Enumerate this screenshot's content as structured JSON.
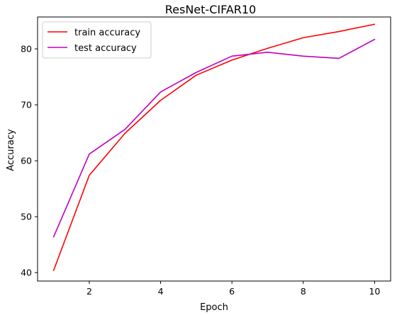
{
  "chart_data": {
    "type": "line",
    "title": "ResNet-CIFAR10",
    "xlabel": "Epoch",
    "ylabel": "Accuracy",
    "xlim": [
      0.55,
      10.45
    ],
    "ylim": [
      38.5,
      85.7
    ],
    "xticks": [
      2,
      4,
      6,
      8,
      10
    ],
    "yticks": [
      40,
      50,
      60,
      70,
      80
    ],
    "x": [
      1,
      2,
      3,
      4,
      5,
      6,
      7,
      8,
      9,
      10
    ],
    "grid": false,
    "legend_position": "upper-left",
    "series": [
      {
        "name": "train accuracy",
        "color": "#ff0000",
        "values": [
          40.4,
          57.4,
          64.9,
          70.8,
          75.3,
          78.0,
          80.1,
          82.0,
          83.1,
          84.4
        ]
      },
      {
        "name": "test accuracy",
        "color": "#bf00bf",
        "values": [
          46.4,
          61.2,
          65.6,
          72.3,
          75.8,
          78.7,
          79.4,
          78.7,
          78.3,
          81.7
        ]
      }
    ]
  }
}
